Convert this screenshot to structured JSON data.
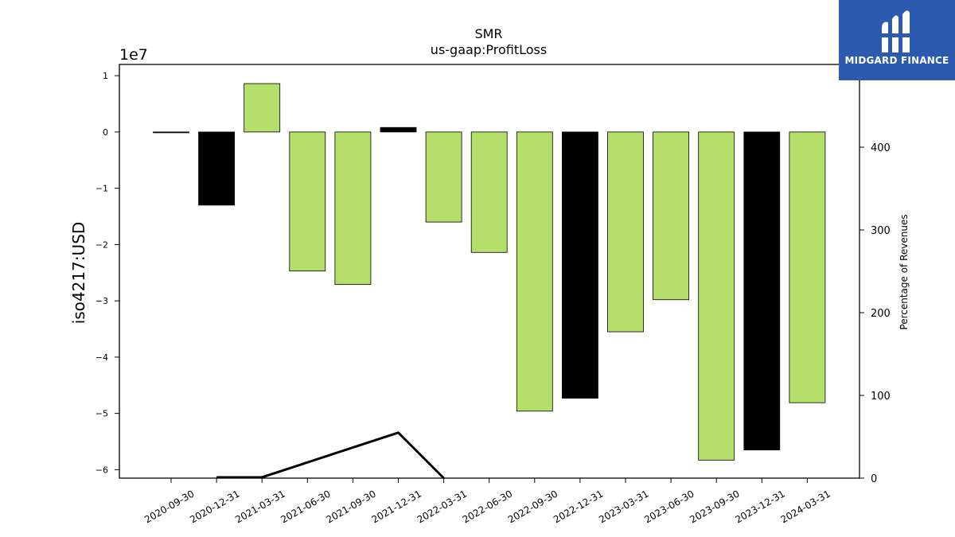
{
  "brand": {
    "name": "MIDGARD FINANCE",
    "bg_color": "#2b5aae"
  },
  "chart_data": {
    "type": "bar",
    "title": "SMR",
    "subtitle": "us-gaap:ProfitLoss",
    "ylabel": "iso4217:USD",
    "y2label": "Percentage of Revenues",
    "y_offset_text": "1e7",
    "ylim": [
      -61500000,
      12000000
    ],
    "y2lim": [
      0,
      500
    ],
    "yticks": [
      1,
      0,
      -1,
      -2,
      -3,
      -4,
      -5,
      -6
    ],
    "yticklabels": [
      "1",
      "0",
      "−1",
      "−2",
      "−3",
      "−4",
      "−5",
      "−6"
    ],
    "y2ticks": [
      0,
      100,
      200,
      300,
      400
    ],
    "categories": [
      "2020-09-30",
      "2020-12-31",
      "2021-03-31",
      "2021-06-30",
      "2021-09-30",
      "2021-12-31",
      "2022-03-31",
      "2022-06-30",
      "2022-09-30",
      "2022-12-31",
      "2023-03-31",
      "2023-06-30",
      "2023-09-30",
      "2023-12-31",
      "2024-03-31"
    ],
    "values": [
      -50000,
      -13000000,
      8600000,
      -24700000,
      -27100000,
      800000,
      -16000000,
      -21400000,
      -49600000,
      -47300000,
      -35500000,
      -29800000,
      -58300000,
      -56500000,
      -48100000
    ],
    "bar_colors": [
      "#000000",
      "#000000",
      "#b3df6a",
      "#b3df6a",
      "#b3df6a",
      "#000000",
      "#b3df6a",
      "#b3df6a",
      "#b3df6a",
      "#000000",
      "#b3df6a",
      "#b3df6a",
      "#b3df6a",
      "#000000",
      "#b3df6a"
    ],
    "pct_line": {
      "x": [
        "2020-12-31",
        "2021-03-31",
        "2021-12-31",
        "2022-03-31"
      ],
      "values": [
        1,
        1,
        55,
        0
      ]
    },
    "grid": false
  }
}
